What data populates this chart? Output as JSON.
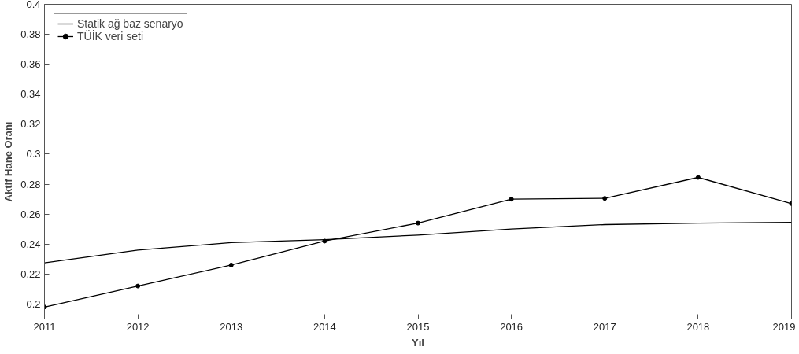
{
  "chart_data": {
    "type": "line",
    "xlabel": "Yıl",
    "ylabel": "Aktif Hane Oranı",
    "x": [
      2011,
      2012,
      2013,
      2014,
      2015,
      2016,
      2017,
      2018,
      2019
    ],
    "series": [
      {
        "name": "Statik ağ baz senaryo",
        "color": "#000000",
        "marker": "none",
        "values": [
          0.2275,
          0.236,
          0.241,
          0.243,
          0.246,
          0.25,
          0.253,
          0.254,
          0.2545
        ]
      },
      {
        "name": "TÜİK veri seti",
        "color": "#000000",
        "marker": "circle",
        "values": [
          0.198,
          0.212,
          0.226,
          0.242,
          0.254,
          0.27,
          0.2705,
          0.2845,
          0.267
        ]
      }
    ],
    "xlim": [
      2011,
      2019
    ],
    "xticks": [
      2011,
      2012,
      2013,
      2014,
      2015,
      2016,
      2017,
      2018,
      2019
    ],
    "ylim": [
      0.19,
      0.4
    ],
    "yticks": [
      0.2,
      0.22,
      0.24,
      0.26,
      0.28,
      0.3,
      0.32,
      0.34,
      0.36,
      0.38,
      0.4
    ],
    "grid": false,
    "legend": "top left"
  }
}
